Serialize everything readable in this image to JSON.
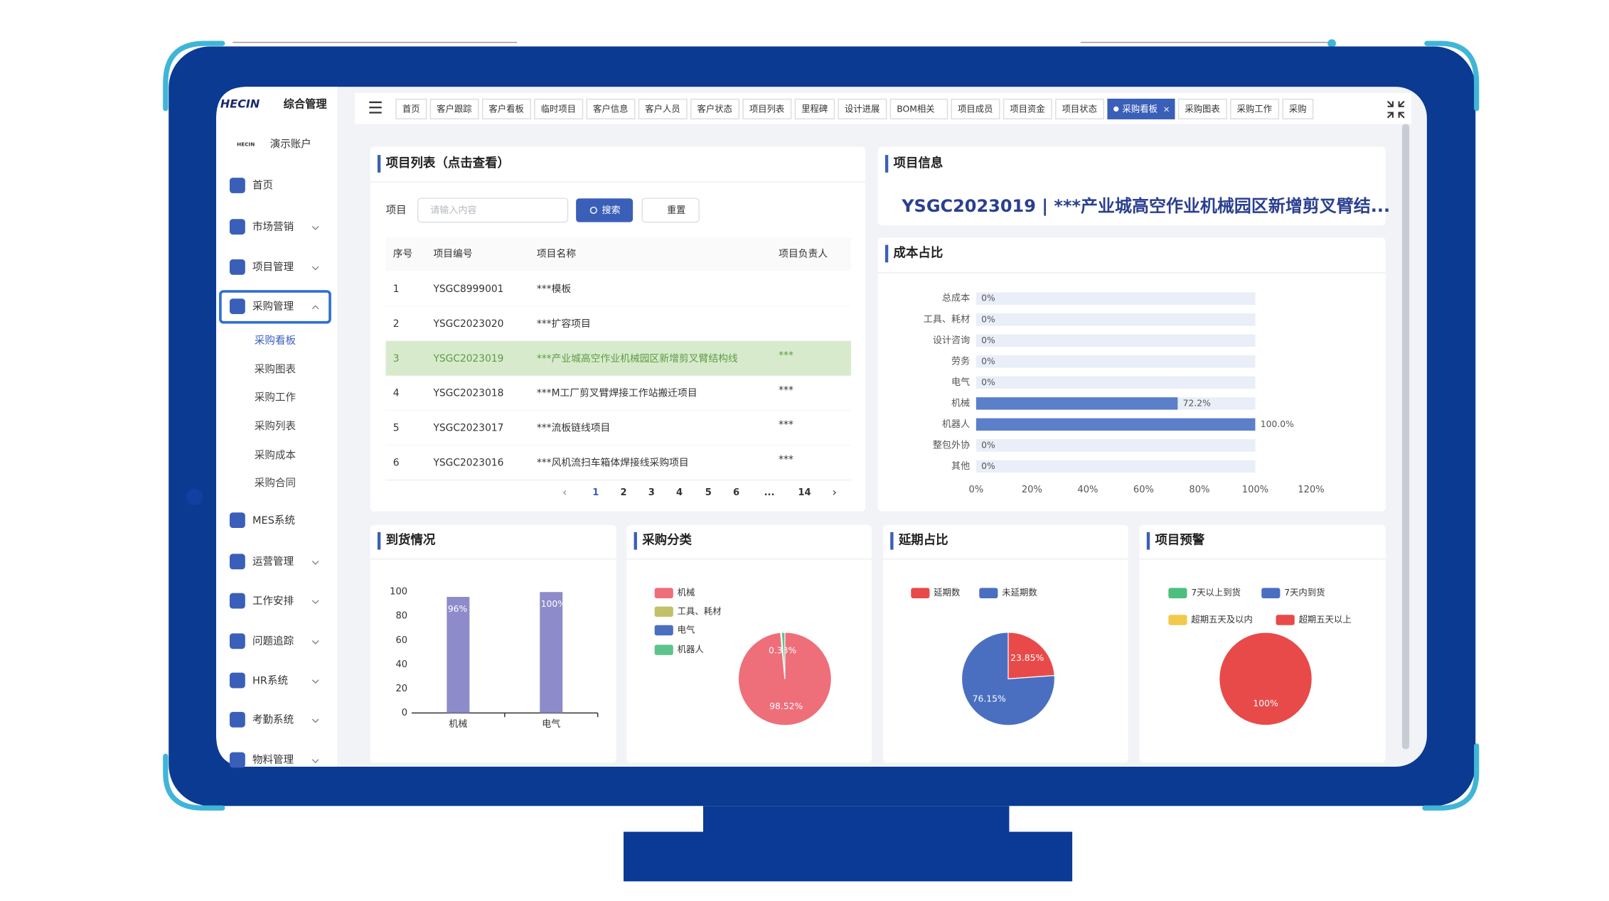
{
  "sidebar": {
    "logo": "HECIN",
    "app_title": "综合管理",
    "account_logo": "HECIN",
    "account": "演示账户",
    "menu": [
      "首页",
      "市场营销",
      "项目管理",
      "采购管理",
      "MES系统",
      "运营管理",
      "工作安排",
      "问题追踪",
      "HR系统",
      "考勤系统",
      "物料管理"
    ],
    "submenu": [
      "采购看板",
      "采购图表",
      "采购工作",
      "采购列表",
      "采购成本",
      "采购合同"
    ]
  },
  "tabs": [
    "首页",
    "客户跟踪",
    "客户看板",
    "临时项目",
    "客户信息",
    "客户人员",
    "客户状态",
    "项目列表",
    "里程碑",
    "设计进展",
    "BOM相关",
    "项目成员",
    "项目资金",
    "项目状态",
    "采购看板",
    "采购图表",
    "采购工作",
    "采购"
  ],
  "active_tab": 14,
  "tab_close": "×",
  "project_list": {
    "title": "项目列表（点击查看）",
    "search_label": "项目",
    "placeholder": "请输入内容",
    "search_button": "搜索",
    "reset_button": "重置",
    "columns": [
      "序号",
      "项目编号",
      "项目名称",
      "项目负责人"
    ],
    "rows": [
      [
        "1",
        "YSGC8999001",
        "***模板"
      ],
      [
        "2",
        "YSGC2023020",
        "***扩容项目"
      ],
      [
        "3",
        "YSGC2023019",
        "***产业城高空作业机械园区新增剪叉臂结构线",
        "***"
      ],
      [
        "4",
        "YSGC2023018",
        "***M工厂剪叉臂焊接工作站搬迁项目",
        "***"
      ],
      [
        "5",
        "YSGC2023017",
        "***流板链线项目",
        "***"
      ],
      [
        "6",
        "YSGC2023016",
        "***风机流扫车箱体焊接线采购项目",
        "***"
      ]
    ],
    "selected_row": 2,
    "pagination": {
      "prev": "‹",
      "pages": [
        "1",
        "2",
        "3",
        "4",
        "5",
        "6",
        "...",
        "14"
      ],
      "next": "›"
    }
  },
  "project_info": {
    "title": "项目信息",
    "heading": "YSGC2023019 | ***产业城高空作业机械园区新增剪叉臂结..."
  },
  "chart_data": [
    {
      "type": "bar",
      "orientation": "horizontal",
      "title": "成本占比",
      "categories": [
        "总成本",
        "工具、耗材",
        "设计咨询",
        "劳务",
        "电气",
        "机械",
        "机器人",
        "整包外协",
        "其他"
      ],
      "values": [
        0,
        0,
        0,
        0,
        0,
        72.2,
        100,
        0,
        0
      ],
      "value_labels": [
        "0%",
        "0%",
        "0%",
        "0%",
        "0%",
        "72.2%",
        "100.0%",
        "0%",
        "0%"
      ],
      "color": "#5b7fc8",
      "xlim": [
        0,
        120
      ],
      "xticks": [
        {
          "value": 0,
          "label": "0%"
        },
        {
          "value": 20,
          "label": "20%"
        },
        {
          "value": 40,
          "label": "40%"
        },
        {
          "value": 60,
          "label": "60%"
        },
        {
          "value": 80,
          "label": "80%"
        },
        {
          "value": 100,
          "label": "100%"
        },
        {
          "value": 120,
          "label": "120%"
        }
      ]
    },
    {
      "type": "bar",
      "title": "到货情况",
      "categories": [
        "机械",
        "电气"
      ],
      "values": [
        96,
        100
      ],
      "value_labels": [
        "96%",
        "100%"
      ],
      "color": "#8d8bc9",
      "ylim": [
        0,
        100
      ],
      "yticks": [
        0,
        20,
        40,
        60,
        80,
        100
      ]
    },
    {
      "type": "pie",
      "title": "采购分类",
      "categories": [
        "机械",
        "工具、耗材",
        "电气",
        "机器人"
      ],
      "values": [
        98.52,
        0,
        0.33,
        1.15
      ],
      "value_labels": [
        "98.52%",
        null,
        "0.33%",
        null
      ],
      "colors": [
        "#ee6e7a",
        "#c3c06a",
        "#4a6fc1",
        "#5cc48a"
      ]
    },
    {
      "type": "pie",
      "title": "延期占比",
      "categories": [
        "延期数",
        "未延期数"
      ],
      "values": [
        23.85,
        76.15
      ],
      "value_labels": [
        "23.85%",
        "76.15%"
      ],
      "colors": [
        "#e84a4a",
        "#4a6fc1"
      ]
    },
    {
      "type": "pie",
      "title": "项目预警",
      "categories": [
        "7天以上到货",
        "7天内到货",
        "超期五天及以内",
        "超期五天以上"
      ],
      "values": [
        0,
        0,
        0,
        100
      ],
      "value_labels": [
        null,
        null,
        null,
        "100%"
      ],
      "colors": [
        "#4cbf7f",
        "#4a6fc1",
        "#f2c94c",
        "#e84a4a"
      ]
    }
  ]
}
